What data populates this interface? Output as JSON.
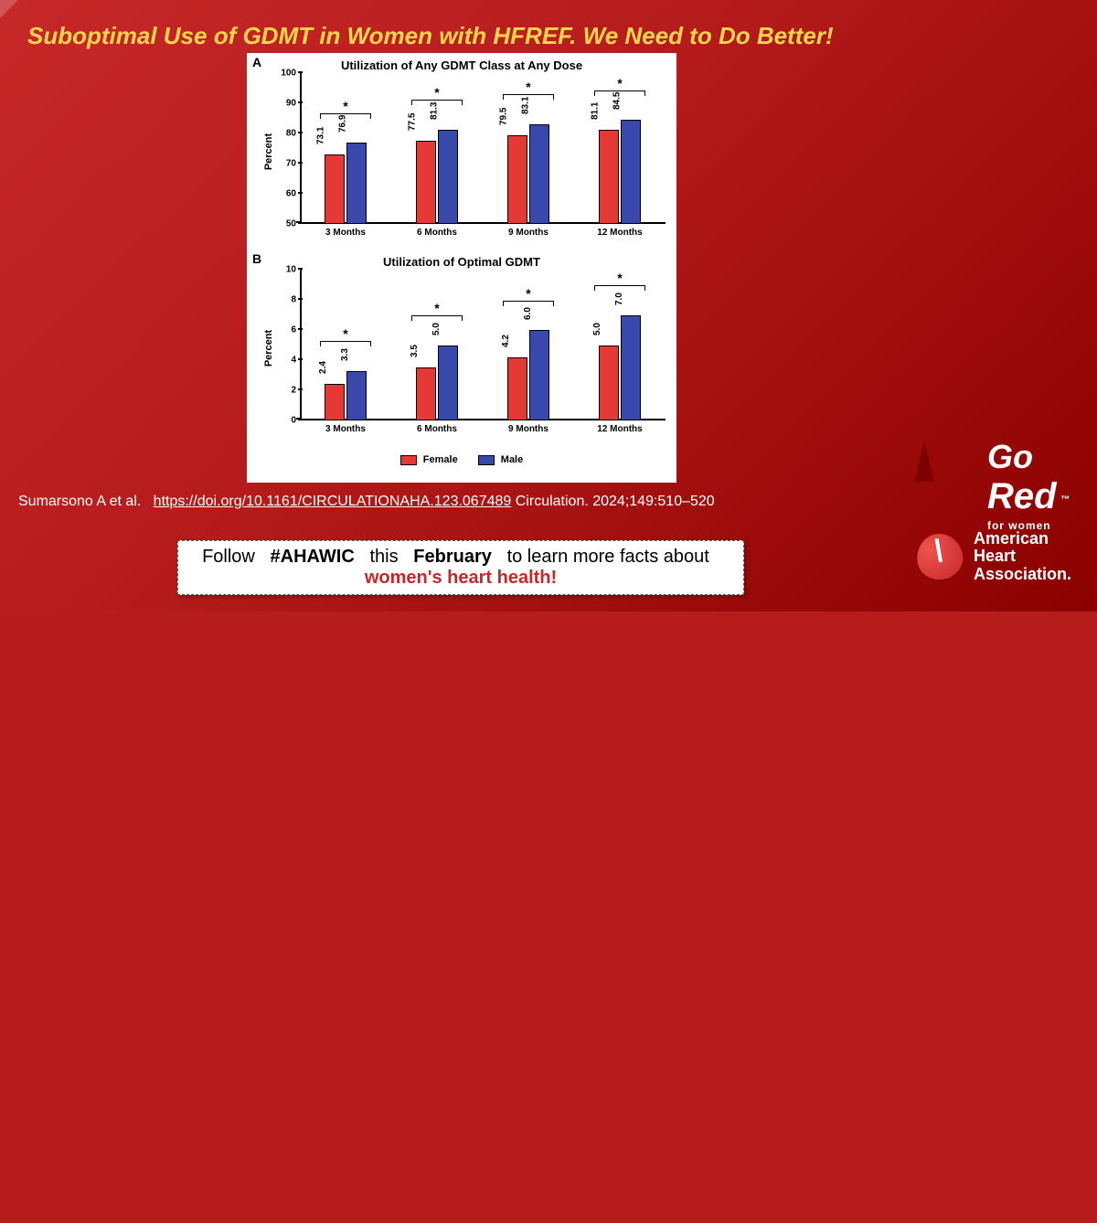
{
  "title": "Suboptimal Use of GDMT in Women with HFREF.  We Need to Do Better!",
  "chartA": {
    "panel_letter": "A",
    "type": "bar",
    "title": "Utilization of Any GDMT Class at Any Dose",
    "ylabel": "Percent",
    "ylim": [
      50,
      100
    ],
    "yticks": [
      50,
      60,
      70,
      80,
      90,
      100
    ],
    "categories": [
      "3 Months",
      "6 Months",
      "9 Months",
      "12 Months"
    ],
    "female": [
      73.1,
      77.5,
      79.5,
      81.1
    ],
    "male": [
      76.9,
      81.3,
      83.1,
      84.5
    ],
    "bar_colors": {
      "female": "#e53935",
      "male": "#3949ab"
    },
    "asterisk": "*",
    "axis_color": "#000000",
    "label_fontsize": 10,
    "title_fontsize": 13
  },
  "chartB": {
    "panel_letter": "B",
    "type": "bar",
    "title": "Utilization of Optimal GDMT",
    "ylabel": "Percent",
    "ylim": [
      0,
      10
    ],
    "yticks": [
      0,
      2,
      4,
      6,
      8,
      10
    ],
    "categories": [
      "3 Months",
      "6 Months",
      "9 Months",
      "12 Months"
    ],
    "female": [
      2.4,
      3.5,
      4.2,
      5.0
    ],
    "male": [
      3.3,
      5.0,
      6.0,
      7.0
    ],
    "bar_colors": {
      "female": "#e53935",
      "male": "#3949ab"
    },
    "asterisk": "*",
    "axis_color": "#000000",
    "label_fontsize": 10,
    "title_fontsize": 13
  },
  "legend": {
    "female": "Female",
    "male": "Male"
  },
  "citation": {
    "authors": "Sumarsono A et al.",
    "doi": "https://doi.org/10.1161/CIRCULATIONAHA.123.067489",
    "journal": "Circulation. 2024;149:510–520"
  },
  "follow": {
    "prefix": "Follow",
    "hashtag": "#AHAWIC",
    "middle": "this",
    "month": "February",
    "suffix": "to learn more facts about",
    "highlight": "women's heart health!"
  },
  "logos": {
    "go_red_go": "Go",
    "go_red_red": "Red",
    "go_red_sub": "for women",
    "aha_line1": "American",
    "aha_line2": "Heart",
    "aha_line3": "Association."
  },
  "theme": {
    "bg_gradient_from": "#c62828",
    "bg_gradient_to": "#8b0000",
    "title_color": "#ffd54f",
    "text_color": "#ffffff",
    "swoosh_color": "rgba(255,255,255,0.85)",
    "highlight_color": "#c62828"
  }
}
